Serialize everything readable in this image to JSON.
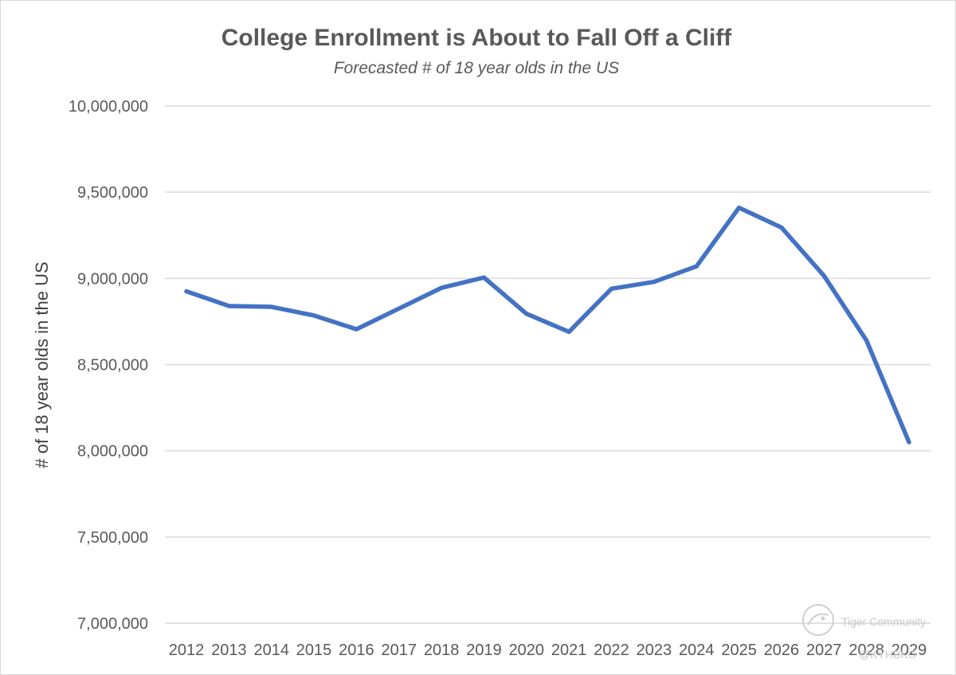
{
  "chart_data": {
    "type": "line",
    "title": "College Enrollment is About to Fall Off a Cliff",
    "subtitle": "Forecasted # of 18 year olds in the US",
    "xlabel": "",
    "ylabel": "# of 18 year olds in the US",
    "ylim": [
      7000000,
      10000000
    ],
    "yticks": [
      7000000,
      7500000,
      8000000,
      8500000,
      9000000,
      9500000,
      10000000
    ],
    "ytick_labels": [
      "7,000,000",
      "7,500,000",
      "8,000,000",
      "8,500,000",
      "9,000,000",
      "9,500,000",
      "10,000,000"
    ],
    "grid": true,
    "legend": "none",
    "categories": [
      "2012",
      "2013",
      "2014",
      "2015",
      "2016",
      "2017",
      "2018",
      "2019",
      "2020",
      "2021",
      "2022",
      "2023",
      "2024",
      "2025",
      "2026",
      "2027",
      "2028",
      "2029"
    ],
    "series": [
      {
        "name": "# of 18 year olds",
        "color": "#4472c4",
        "values": [
          8925000,
          8840000,
          8835000,
          8785000,
          8705000,
          8825000,
          8945000,
          9005000,
          8795000,
          8690000,
          8940000,
          8980000,
          9070000,
          9410000,
          9295000,
          9015000,
          8640000,
          8050000
        ]
      }
    ]
  },
  "watermark": {
    "brand": "Tiger Community",
    "handle": "@KYHBKO",
    "icon": "tiger-logo-icon"
  }
}
